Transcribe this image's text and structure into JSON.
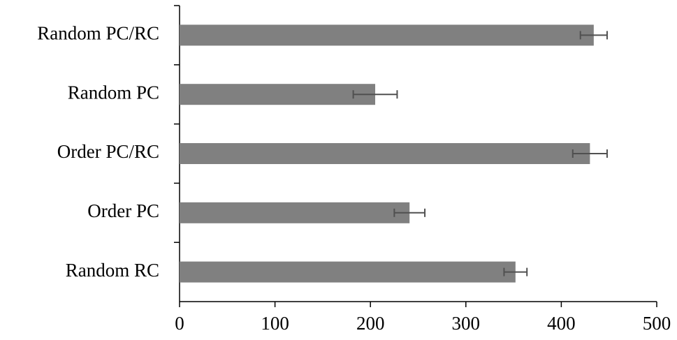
{
  "chart_data": {
    "type": "barh",
    "categories": [
      "Random PC/RC",
      "Random PC",
      "Order PC/RC",
      "Order PC",
      "Random RC"
    ],
    "values": [
      434,
      205,
      430,
      241,
      352
    ],
    "errors": [
      14,
      23,
      18,
      16,
      12
    ],
    "color": "#808080",
    "error_color": "#505050",
    "xlim": [
      0,
      500
    ],
    "xticks": [
      0,
      100,
      200,
      300,
      400,
      500
    ]
  }
}
